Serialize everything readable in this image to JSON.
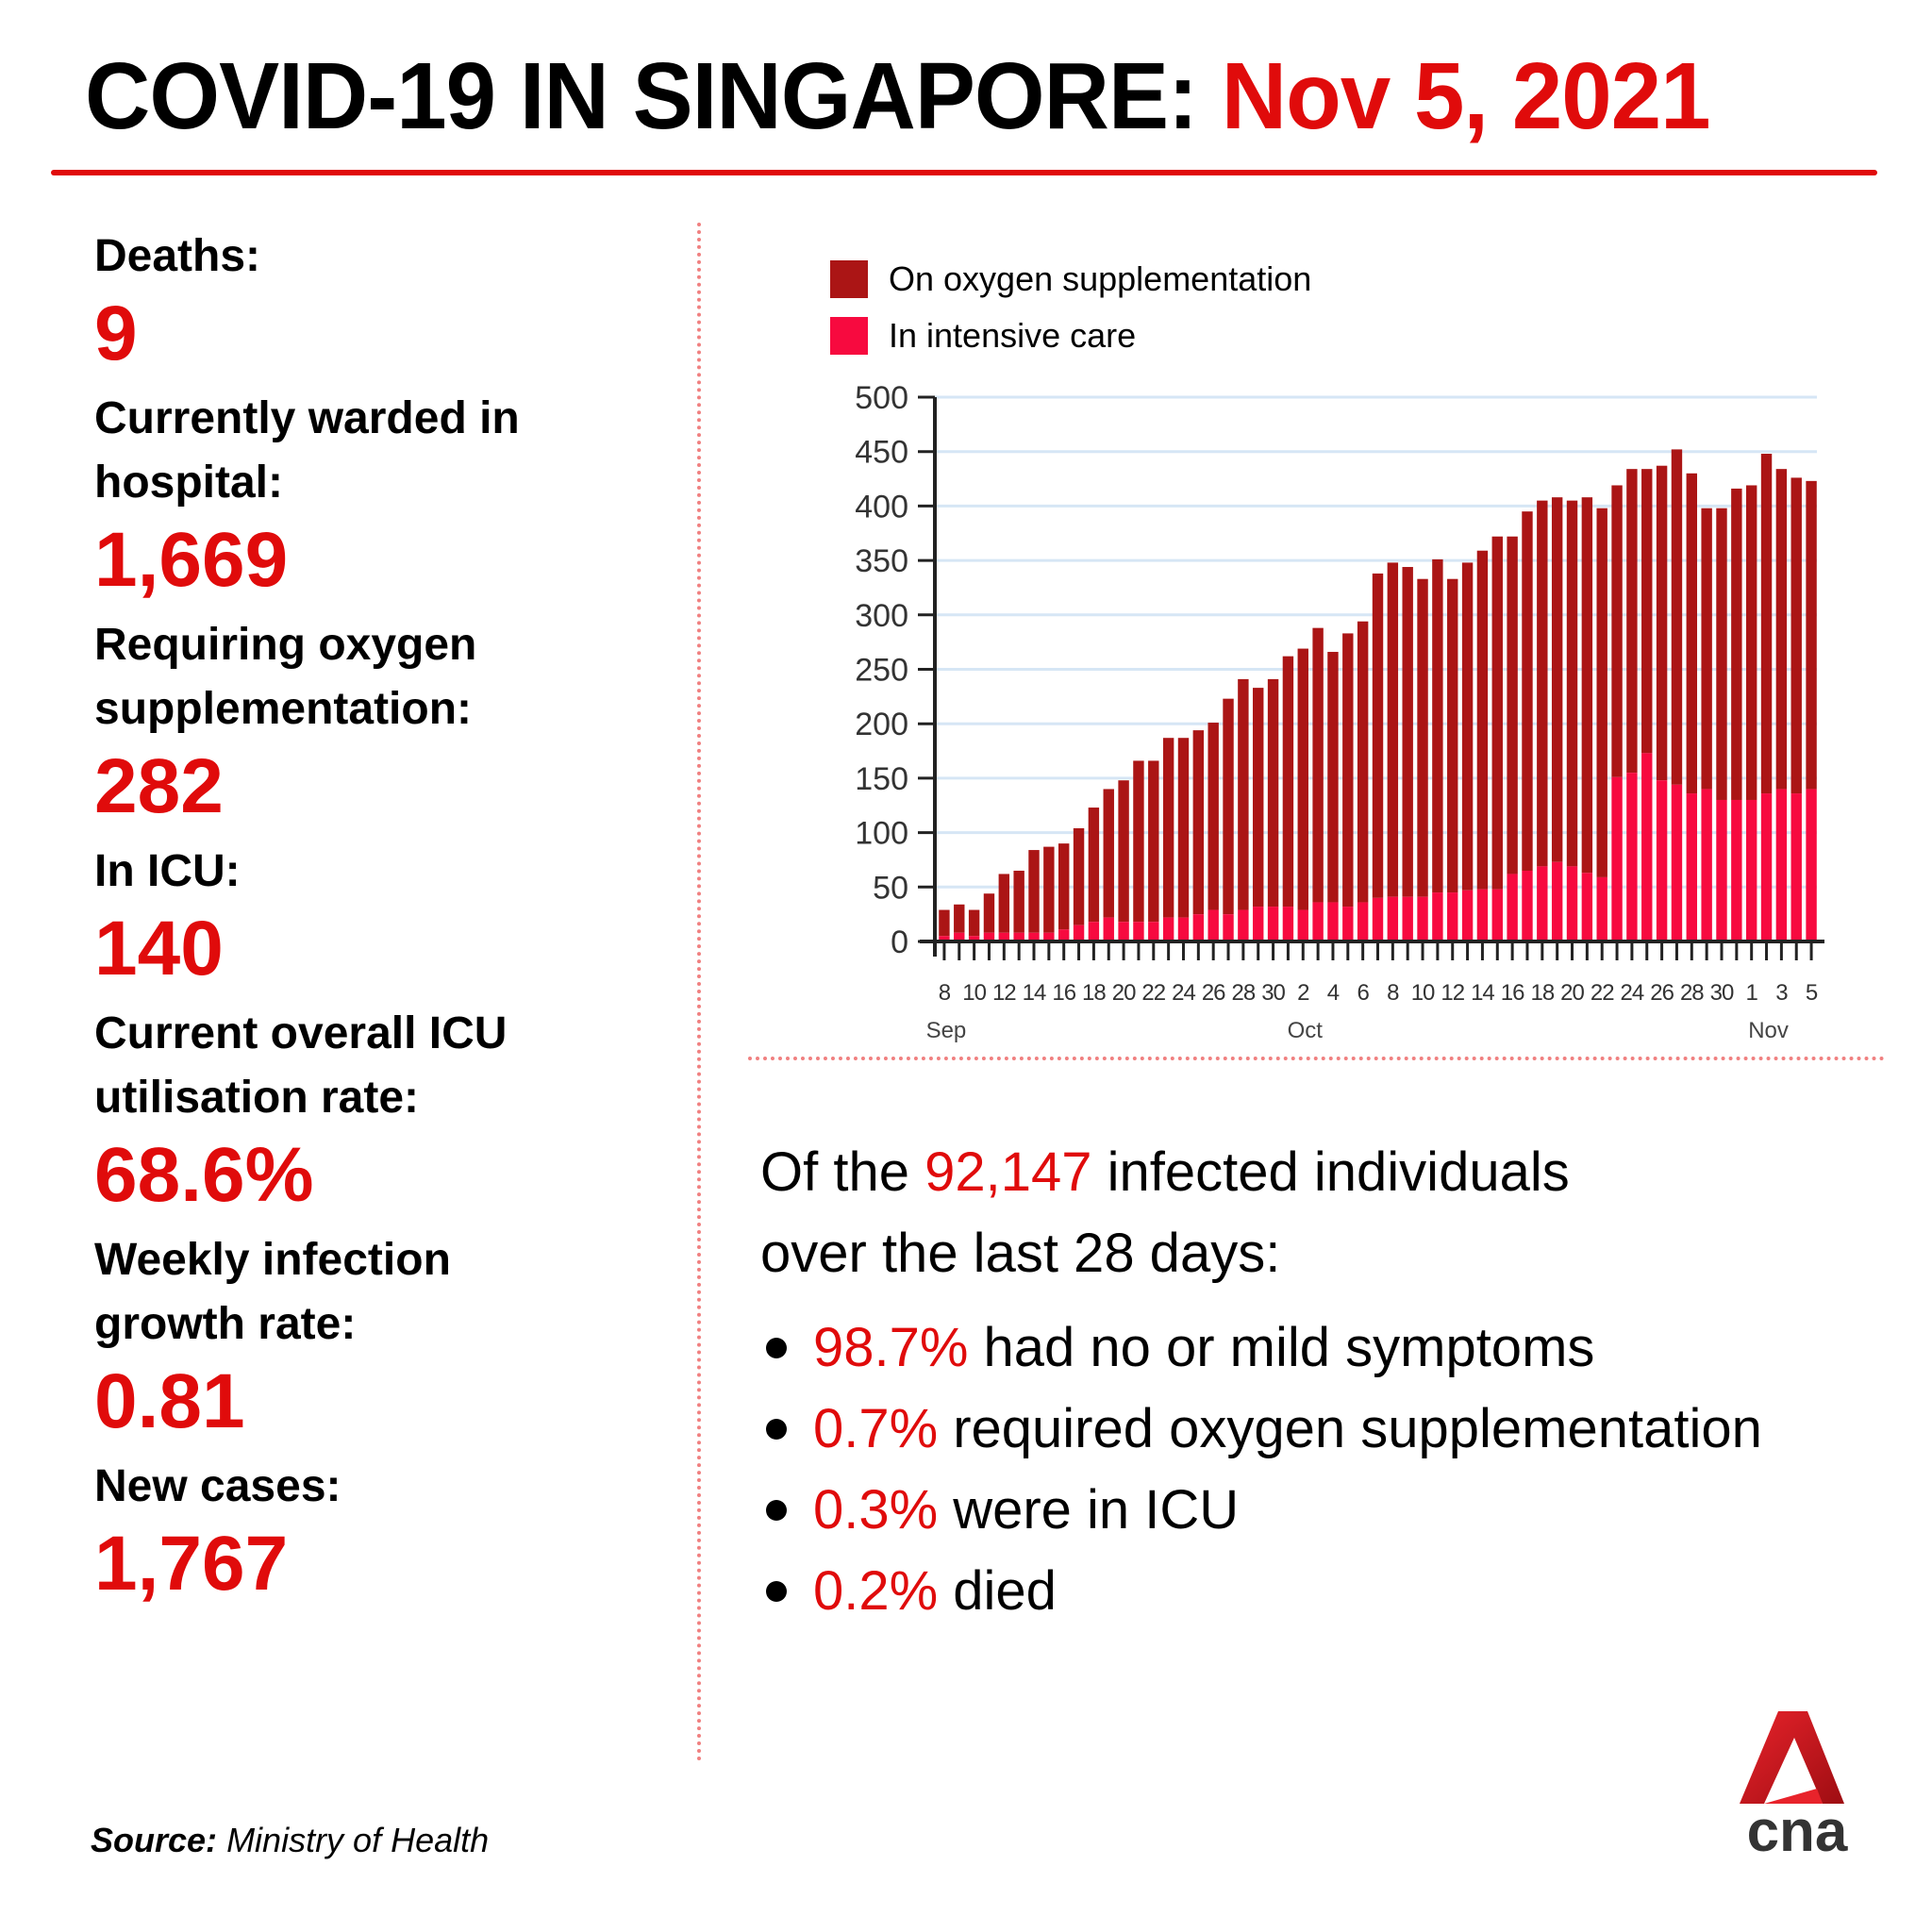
{
  "header": {
    "title_prefix": "COVID-19 IN SINGAPORE:",
    "title_date": "Nov 5, 2021"
  },
  "colors": {
    "accent_red": "#e00b0b",
    "oxygen_series": "#ab1515",
    "icu_series": "#f70a3f",
    "divider": "#f08080",
    "gridline": "#d6e6f5"
  },
  "stats": [
    {
      "label": "Deaths:",
      "value": "9"
    },
    {
      "label": "Currently warded in hospital:",
      "value": "1,669"
    },
    {
      "label": "Requiring oxygen supplementation:",
      "value": "282"
    },
    {
      "label": "In ICU:",
      "value": "140"
    },
    {
      "label": "Current overall ICU utilisation rate:",
      "value": "68.6%"
    },
    {
      "label": "Weekly infection growth rate:",
      "value": "0.81"
    },
    {
      "label": "New cases:",
      "value": "1,767"
    }
  ],
  "source": {
    "label": "Source:",
    "value": "Ministry of Health"
  },
  "summary": {
    "intro_before": "Of the",
    "total": "92,147",
    "intro_after": "infected individuals",
    "intro_line2": "over the last 28 days:",
    "bullets": [
      {
        "pct": "98.7%",
        "text": "had no or mild symptoms"
      },
      {
        "pct": "0.7%",
        "text": "required oxygen supplementation"
      },
      {
        "pct": "0.3%",
        "text": "were in ICU"
      },
      {
        "pct": "0.2%",
        "text": "died"
      }
    ]
  },
  "logo": {
    "text": "cna"
  },
  "chart_data": {
    "type": "bar",
    "stacked": true,
    "title": "",
    "xlabel": "",
    "ylabel": "",
    "ylim": [
      0,
      500
    ],
    "yticks": [
      0,
      50,
      100,
      150,
      200,
      250,
      300,
      350,
      400,
      450,
      500
    ],
    "grid": true,
    "legend_position": "top-left",
    "legend": [
      "On oxygen supplementation",
      "In intensive care"
    ],
    "x_start": "Sep 8",
    "x_end": "Nov 5",
    "x_tick_labels": [
      {
        "index": 0,
        "label": "8"
      },
      {
        "index": 2,
        "label": "10"
      },
      {
        "index": 4,
        "label": "12"
      },
      {
        "index": 6,
        "label": "14"
      },
      {
        "index": 8,
        "label": "16"
      },
      {
        "index": 10,
        "label": "18"
      },
      {
        "index": 12,
        "label": "20"
      },
      {
        "index": 14,
        "label": "22"
      },
      {
        "index": 16,
        "label": "24"
      },
      {
        "index": 18,
        "label": "26"
      },
      {
        "index": 20,
        "label": "28"
      },
      {
        "index": 22,
        "label": "30"
      },
      {
        "index": 24,
        "label": "2"
      },
      {
        "index": 26,
        "label": "4"
      },
      {
        "index": 28,
        "label": "6"
      },
      {
        "index": 30,
        "label": "8"
      },
      {
        "index": 32,
        "label": "10"
      },
      {
        "index": 34,
        "label": "12"
      },
      {
        "index": 36,
        "label": "14"
      },
      {
        "index": 38,
        "label": "16"
      },
      {
        "index": 40,
        "label": "18"
      },
      {
        "index": 42,
        "label": "20"
      },
      {
        "index": 44,
        "label": "22"
      },
      {
        "index": 46,
        "label": "24"
      },
      {
        "index": 48,
        "label": "26"
      },
      {
        "index": 50,
        "label": "28"
      },
      {
        "index": 52,
        "label": "30"
      },
      {
        "index": 54,
        "label": "1"
      },
      {
        "index": 56,
        "label": "3"
      },
      {
        "index": 58,
        "label": "5"
      }
    ],
    "month_labels": [
      {
        "index": 0,
        "label": "Sep"
      },
      {
        "index": 24,
        "label": "Oct"
      },
      {
        "index": 55,
        "label": "Nov"
      }
    ],
    "series": [
      {
        "name": "In intensive care",
        "values": [
          5,
          8,
          5,
          8,
          8,
          8,
          8,
          8,
          11,
          15,
          18,
          22,
          18,
          18,
          18,
          22,
          22,
          25,
          29,
          25,
          29,
          32,
          32,
          32,
          29,
          36,
          36,
          32,
          36,
          40,
          41,
          41,
          41,
          45,
          45,
          47,
          48,
          48,
          62,
          65,
          69,
          73,
          69,
          63,
          59,
          151,
          155,
          173,
          148,
          144,
          136,
          140,
          130,
          130,
          130,
          136,
          140,
          136,
          140
        ]
      },
      {
        "name": "On oxygen supplementation",
        "values": [
          24,
          26,
          24,
          36,
          54,
          57,
          76,
          79,
          79,
          89,
          105,
          118,
          130,
          148,
          148,
          165,
          165,
          169,
          172,
          198,
          212,
          201,
          209,
          230,
          240,
          252,
          230,
          251,
          258,
          298,
          307,
          303,
          292,
          306,
          288,
          301,
          311,
          324,
          310,
          330,
          336,
          335,
          336,
          345,
          339,
          268,
          279,
          261,
          289,
          308,
          294,
          258,
          268,
          286,
          289,
          312,
          294,
          290,
          283
        ]
      }
    ],
    "totals": [
      29,
      34,
      29,
      44,
      62,
      65,
      84,
      87,
      90,
      104,
      123,
      140,
      148,
      166,
      166,
      187,
      187,
      194,
      201,
      223,
      241,
      233,
      241,
      262,
      269,
      288,
      266,
      283,
      294,
      338,
      348,
      344,
      333,
      351,
      333,
      348,
      359,
      372,
      372,
      395,
      405,
      408,
      405,
      408,
      398,
      419,
      434,
      434,
      437,
      452,
      430,
      398,
      398,
      416,
      419,
      448,
      434,
      426,
      423
    ]
  }
}
